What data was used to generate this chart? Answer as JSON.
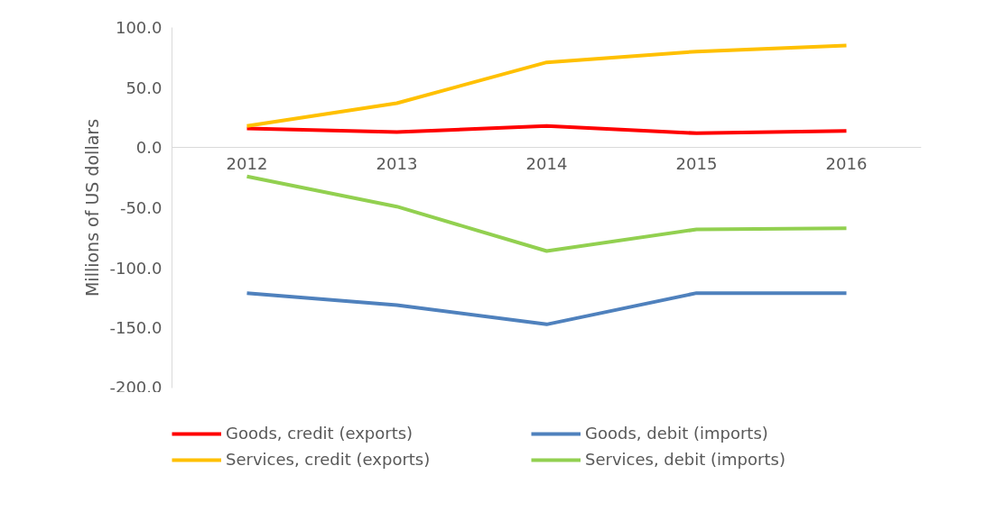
{
  "chart_data": {
    "type": "line",
    "ylabel": "Millions of US dollars",
    "categories": [
      "2012",
      "2013",
      "2014",
      "2015",
      "2016"
    ],
    "series": [
      {
        "name": "Goods, credit (exports)",
        "color": "#ff0000",
        "values": [
          16,
          13,
          18,
          12,
          14
        ]
      },
      {
        "name": "Goods, debit (imports)",
        "color": "#4f81bd",
        "values": [
          -121,
          -131,
          -147,
          -121,
          -121
        ]
      },
      {
        "name": "Services, credit (exports)",
        "color": "#ffc000",
        "values": [
          18,
          37,
          71,
          80,
          85
        ]
      },
      {
        "name": "Services, debit (imports)",
        "color": "#92d050",
        "values": [
          -24,
          -49,
          -86,
          -68,
          -67
        ]
      }
    ],
    "ylim": [
      -200,
      100
    ],
    "yticks": [
      {
        "value": -200,
        "label": "-200.0"
      },
      {
        "value": -150,
        "label": "-150.0"
      },
      {
        "value": -100,
        "label": "-100.0"
      },
      {
        "value": -50,
        "label": "-50.0"
      },
      {
        "value": 0,
        "label": "0.0"
      },
      {
        "value": 50,
        "label": "50.0"
      },
      {
        "value": 100,
        "label": "100.0"
      }
    ],
    "grid": false,
    "legend": "bottom",
    "marker": "none",
    "line_style": "solid"
  }
}
